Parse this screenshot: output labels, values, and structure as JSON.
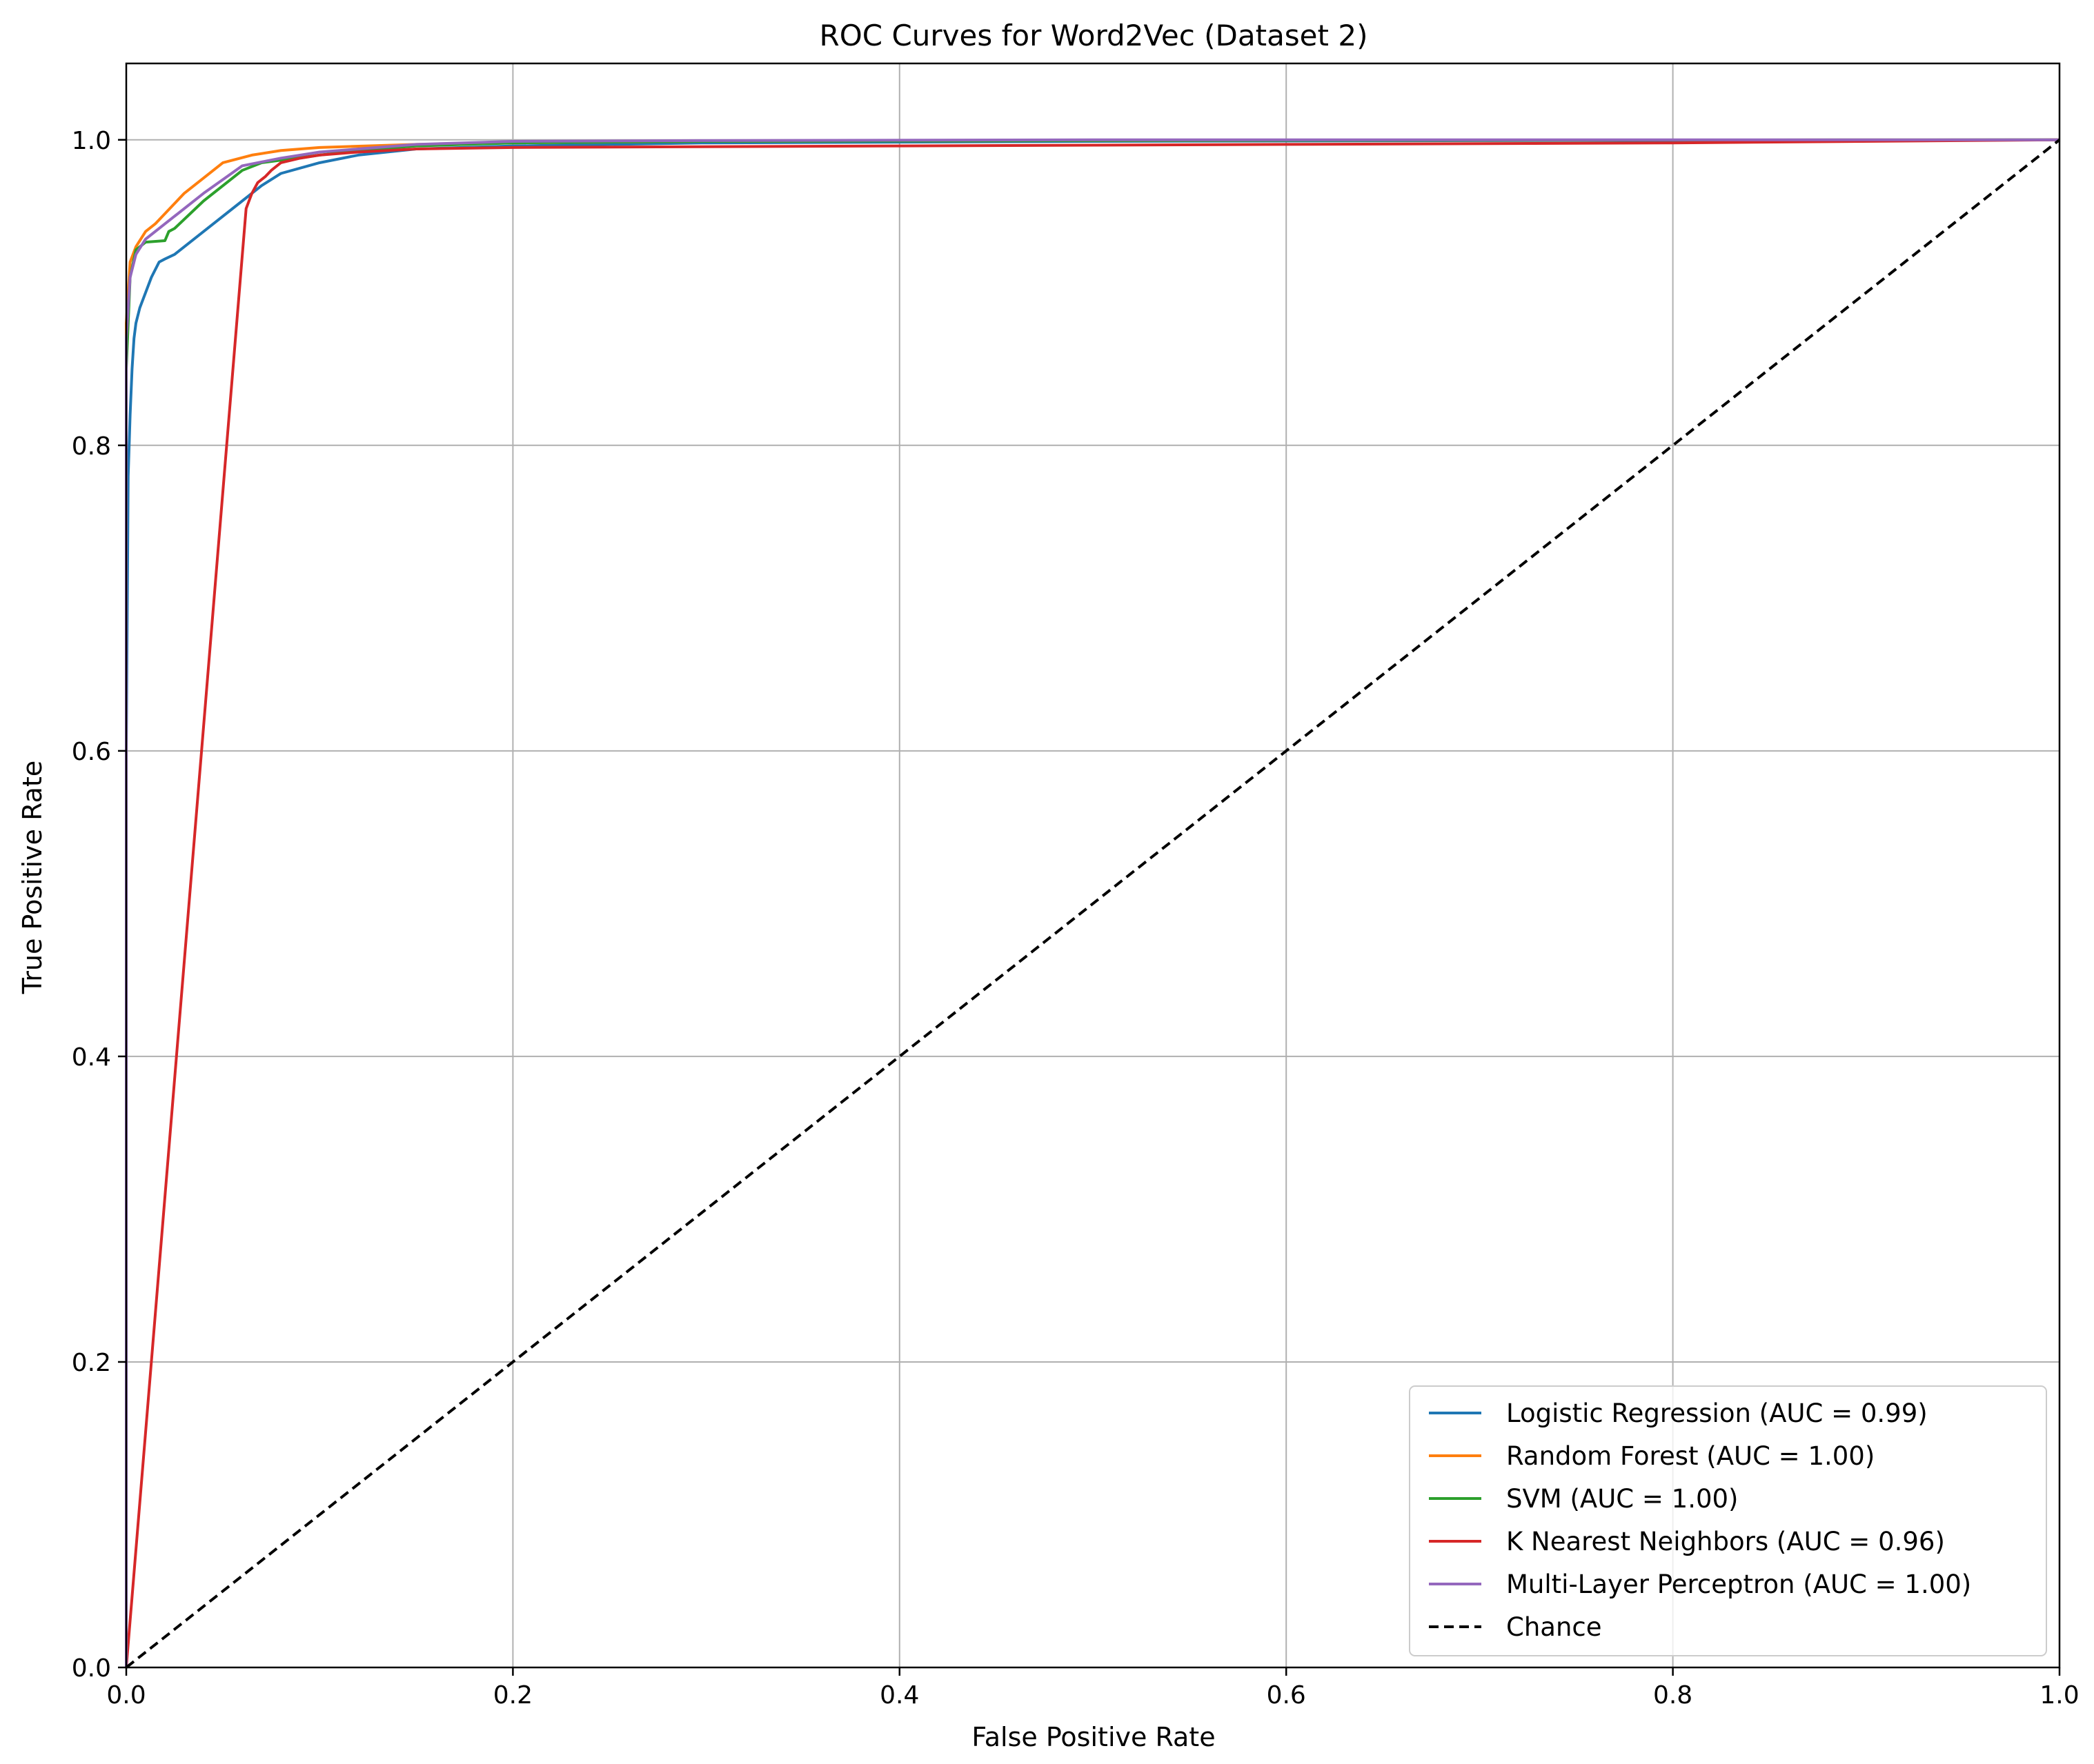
{
  "chart_data": {
    "type": "line",
    "title": "ROC Curves for Word2Vec (Dataset 2)",
    "xlabel": "False Positive Rate",
    "ylabel": "True Positive Rate",
    "xlim": [
      0.0,
      1.0
    ],
    "ylim": [
      0.0,
      1.05
    ],
    "xticks": [
      0.0,
      0.2,
      0.4,
      0.6,
      0.8,
      1.0
    ],
    "xtick_labels": [
      "0.0",
      "0.2",
      "0.4",
      "0.6",
      "0.8",
      "1.0"
    ],
    "yticks": [
      0.0,
      0.2,
      0.4,
      0.6,
      0.8,
      1.0
    ],
    "ytick_labels": [
      "0.0",
      "0.2",
      "0.4",
      "0.6",
      "0.8",
      "1.0"
    ],
    "grid": true,
    "legend_position": "lower right",
    "series": [
      {
        "name": "Logistic Regression (AUC = 0.99)",
        "color": "#1f77b4",
        "dash": false,
        "x": [
          0.0,
          0.0,
          0.001,
          0.002,
          0.003,
          0.004,
          0.005,
          0.007,
          0.01,
          0.013,
          0.017,
          0.02,
          0.025,
          0.04,
          0.06,
          0.07,
          0.08,
          0.1,
          0.12,
          0.15,
          0.2,
          0.3,
          0.5,
          0.7,
          1.0
        ],
        "y": [
          0.0,
          0.6,
          0.78,
          0.82,
          0.85,
          0.87,
          0.88,
          0.89,
          0.9,
          0.91,
          0.92,
          0.922,
          0.925,
          0.94,
          0.96,
          0.97,
          0.978,
          0.985,
          0.99,
          0.994,
          0.996,
          0.998,
          0.999,
          0.9995,
          1.0
        ]
      },
      {
        "name": "Random Forest (AUC = 1.00)",
        "color": "#ff7f0e",
        "dash": false,
        "x": [
          0.0,
          0.0,
          0.002,
          0.005,
          0.01,
          0.015,
          0.03,
          0.05,
          0.065,
          0.08,
          0.1,
          0.15,
          0.2,
          0.3,
          0.5,
          0.7,
          1.0
        ],
        "y": [
          0.0,
          0.88,
          0.92,
          0.93,
          0.94,
          0.945,
          0.965,
          0.985,
          0.99,
          0.993,
          0.995,
          0.997,
          0.998,
          0.999,
          0.9995,
          0.9998,
          1.0
        ]
      },
      {
        "name": "SVM (AUC = 1.00)",
        "color": "#2ca02c",
        "dash": false,
        "x": [
          0.0,
          0.0,
          0.002,
          0.005,
          0.01,
          0.02,
          0.022,
          0.025,
          0.04,
          0.06,
          0.07,
          0.1,
          0.12,
          0.15,
          0.2,
          0.3,
          0.5,
          0.7,
          1.0
        ],
        "y": [
          0.0,
          0.85,
          0.91,
          0.928,
          0.933,
          0.934,
          0.94,
          0.942,
          0.96,
          0.98,
          0.985,
          0.99,
          0.993,
          0.996,
          0.998,
          0.999,
          0.9995,
          0.9998,
          1.0
        ]
      },
      {
        "name": "K Nearest Neighbors (AUC = 0.96)",
        "color": "#d62728",
        "dash": false,
        "x": [
          0.0,
          0.062,
          0.065,
          0.068,
          0.072,
          0.075,
          0.08,
          0.09,
          0.1,
          0.12,
          0.15,
          0.2,
          0.4,
          0.6,
          0.8,
          1.0
        ],
        "y": [
          0.0,
          0.955,
          0.965,
          0.972,
          0.976,
          0.98,
          0.985,
          0.988,
          0.99,
          0.992,
          0.994,
          0.995,
          0.996,
          0.997,
          0.998,
          1.0
        ]
      },
      {
        "name": "Multi-Layer Perceptron (AUC = 1.00)",
        "color": "#9467bd",
        "dash": false,
        "x": [
          0.0,
          0.0,
          0.002,
          0.005,
          0.01,
          0.02,
          0.04,
          0.06,
          0.08,
          0.1,
          0.15,
          0.2,
          0.3,
          0.5,
          0.7,
          1.0
        ],
        "y": [
          0.0,
          0.87,
          0.91,
          0.925,
          0.935,
          0.945,
          0.965,
          0.983,
          0.988,
          0.992,
          0.997,
          0.999,
          0.9995,
          1.0,
          1.0,
          1.0
        ]
      },
      {
        "name": "Chance",
        "color": "#000000",
        "dash": true,
        "x": [
          0.0,
          1.0
        ],
        "y": [
          0.0,
          1.0
        ]
      }
    ]
  }
}
